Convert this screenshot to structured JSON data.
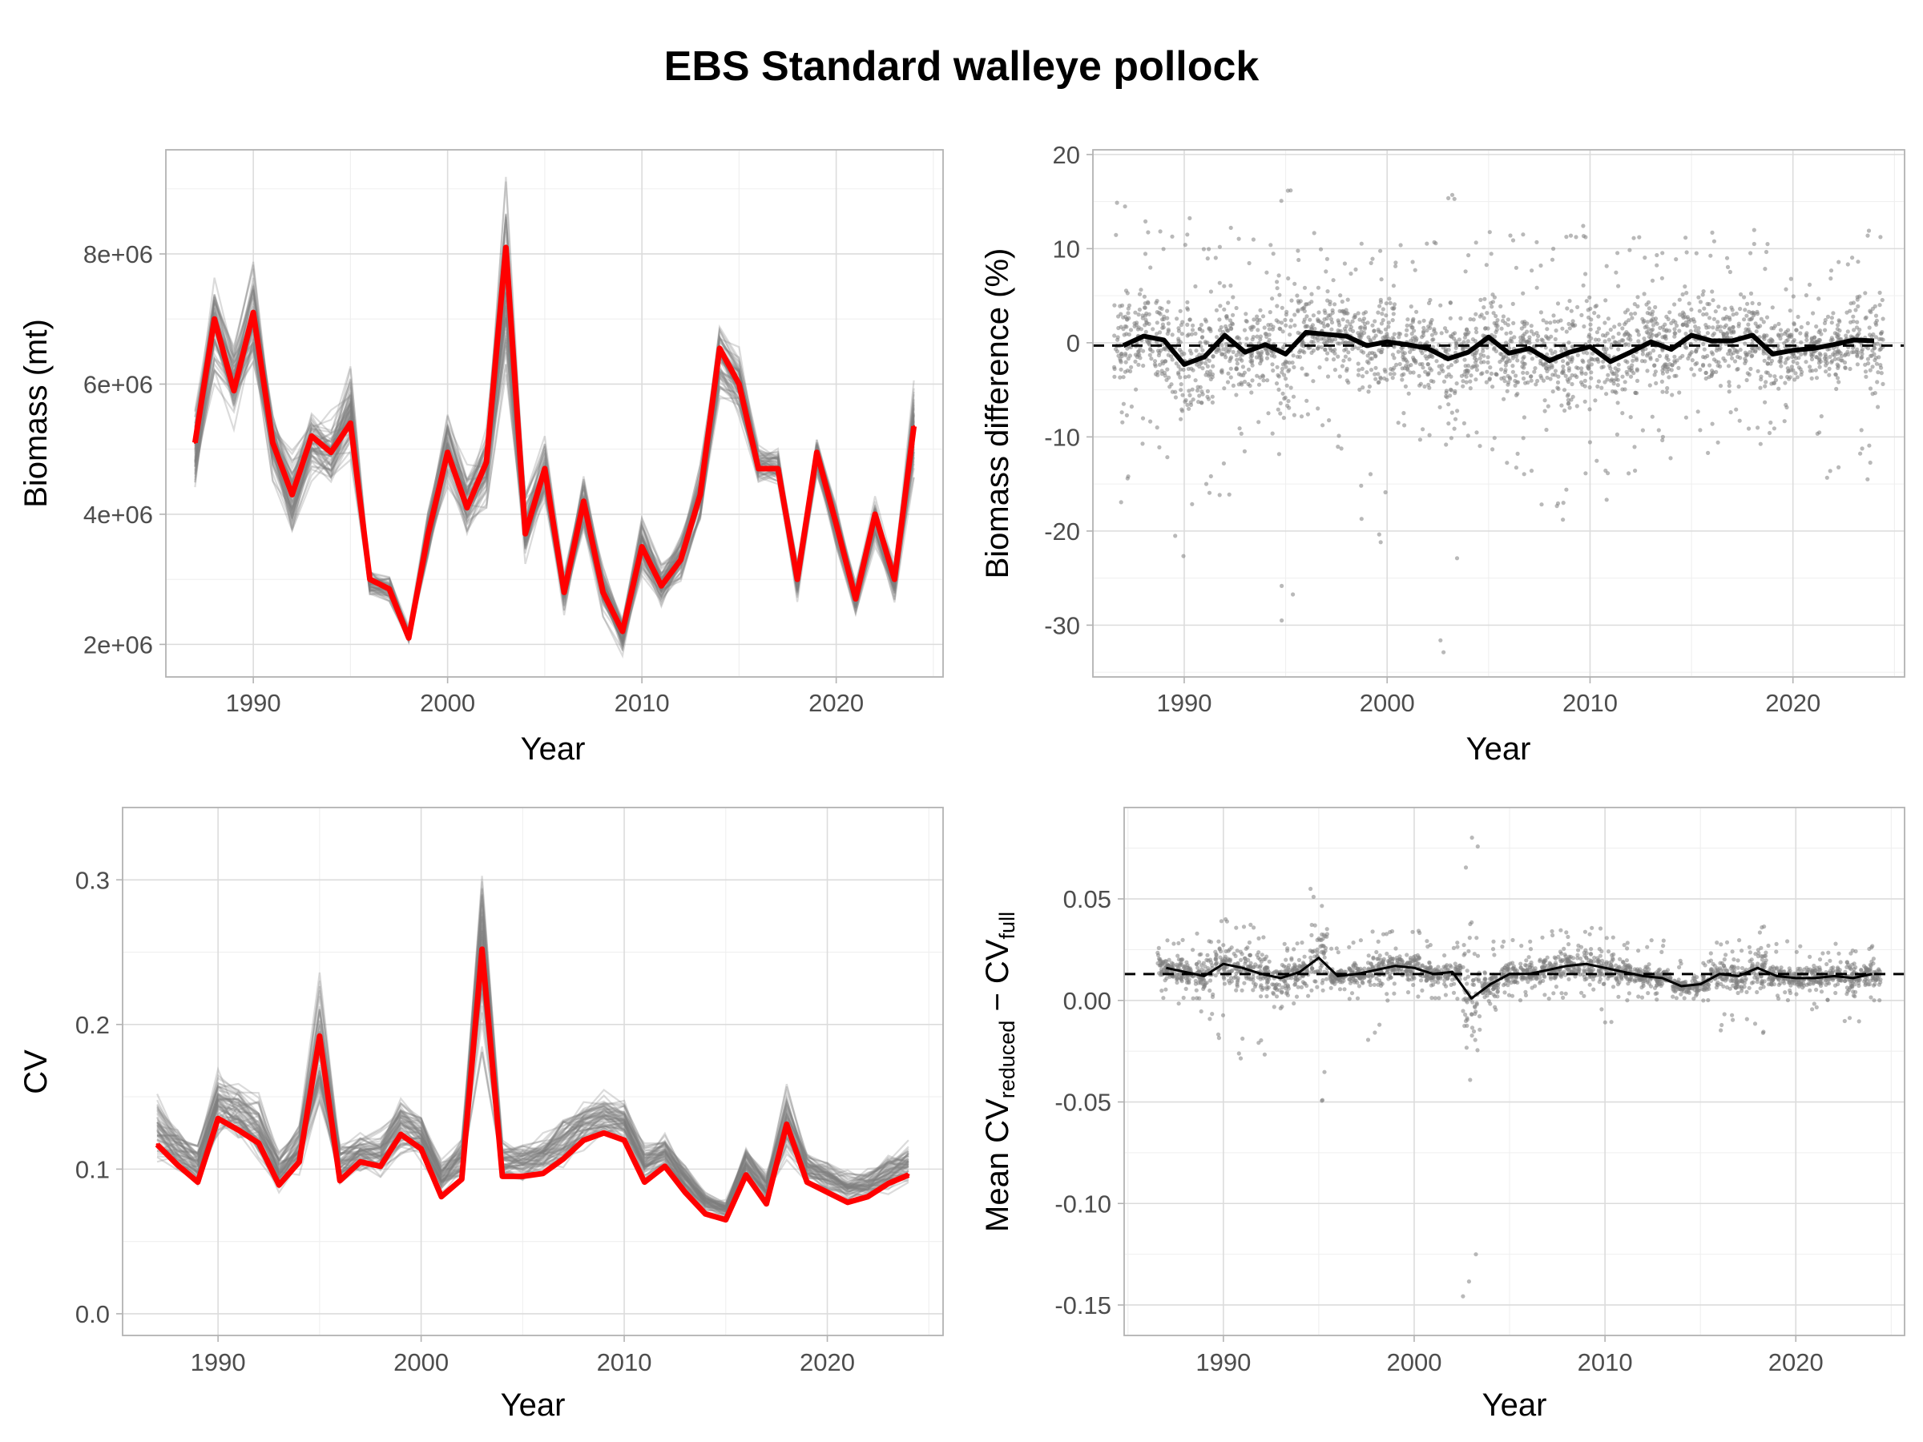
{
  "figure": {
    "title": "EBS Standard walleye pollock",
    "colors": {
      "observed": "#ff0000",
      "replicate": "#7f7f7f",
      "point": "#808080",
      "mean_line": "#000000",
      "reference_line": "#000000",
      "grid": "#dcdcdc",
      "border": "#b3b3b3"
    }
  },
  "chart_data": [
    {
      "type": "line",
      "panel": "top-left",
      "xlabel": "Year",
      "ylabel": "Biomass (mt)",
      "xlim": [
        1985.5,
        2025.5
      ],
      "ylim": [
        1500000,
        9600000
      ],
      "x_ticks": [
        1990,
        2000,
        2010,
        2020
      ],
      "x_tick_labels": [
        "1990",
        "2000",
        "2010",
        "2020"
      ],
      "y_ticks": [
        2000000,
        4000000,
        6000000,
        8000000
      ],
      "y_tick_labels": [
        "2e+06",
        "4e+06",
        "6e+06",
        "8e+06"
      ],
      "grid": true,
      "x": [
        1987,
        1988,
        1989,
        1990,
        1991,
        1992,
        1993,
        1994,
        1995,
        1996,
        1997,
        1998,
        1999,
        2000,
        2001,
        2002,
        2003,
        2004,
        2005,
        2006,
        2007,
        2008,
        2009,
        2010,
        2011,
        2012,
        2013,
        2014,
        2015,
        2016,
        2017,
        2018,
        2019,
        2020,
        2021,
        2022,
        2023,
        2024
      ],
      "series": [
        {
          "role": "observed",
          "values": [
            5100000,
            7000000,
            5900000,
            7100000,
            5100000,
            4300000,
            5200000,
            4950000,
            5400000,
            3000000,
            2850000,
            2100000,
            3700000,
            4950000,
            4100000,
            4800000,
            8100000,
            3700000,
            4700000,
            2800000,
            4200000,
            2800000,
            2200000,
            3500000,
            2900000,
            3300000,
            4300000,
            6550000,
            6000000,
            4700000,
            4700000,
            3000000,
            4950000,
            3850000,
            2700000,
            4000000,
            3000000,
            5350000
          ]
        }
      ],
      "replicate_band": {
        "role": "replicates",
        "lower": [
          4200000,
          6000000,
          5300000,
          5900000,
          4500000,
          3500000,
          4500000,
          4300000,
          4800000,
          2700000,
          2600000,
          2000000,
          3200000,
          4400000,
          3600000,
          4100000,
          5900000,
          3100000,
          4100000,
          2400000,
          3600000,
          2400000,
          1800000,
          3000000,
          2500000,
          2900000,
          3800000,
          5700000,
          5500000,
          4400000,
          4400000,
          2600000,
          4500000,
          3400000,
          2400000,
          3500000,
          2600000,
          4400000
        ],
        "upper": [
          5800000,
          7900000,
          6700000,
          8000000,
          5700000,
          5100000,
          5700000,
          5600000,
          6400000,
          3200000,
          3100000,
          2300000,
          4200000,
          5600000,
          4800000,
          5400000,
          9400000,
          4500000,
          5200000,
          3200000,
          4700000,
          3300000,
          2500000,
          4000000,
          3300000,
          3800000,
          4800000,
          7100000,
          6600000,
          5100000,
          5100000,
          3300000,
          5300000,
          4300000,
          3000000,
          4300000,
          3300000,
          6200000
        ]
      }
    },
    {
      "type": "scatter",
      "panel": "top-right",
      "xlabel": "Year",
      "ylabel": "Biomass difference (%)",
      "xlim": [
        1985.5,
        2025.5
      ],
      "ylim": [
        -35.5,
        20.5
      ],
      "x_ticks": [
        1990,
        2000,
        2010,
        2020
      ],
      "x_tick_labels": [
        "1990",
        "2000",
        "2010",
        "2020"
      ],
      "y_ticks": [
        -30,
        -20,
        -10,
        0,
        10,
        20
      ],
      "y_tick_labels": [
        "-30",
        "-20",
        "-10",
        "0",
        "10",
        "20"
      ],
      "grid": true,
      "reference_line": {
        "y": -0.3,
        "style": "dashed"
      },
      "x": [
        1987,
        1988,
        1989,
        1990,
        1991,
        1992,
        1993,
        1994,
        1995,
        1996,
        1997,
        1998,
        1999,
        2000,
        2001,
        2002,
        2003,
        2004,
        2005,
        2006,
        2007,
        2008,
        2009,
        2010,
        2011,
        2012,
        2013,
        2014,
        2015,
        2016,
        2017,
        2018,
        2019,
        2020,
        2021,
        2022,
        2023,
        2024
      ],
      "mean_difference": [
        -0.3,
        0.7,
        0.3,
        -2.3,
        -1.5,
        0.8,
        -1.0,
        -0.2,
        -1.2,
        1.1,
        0.9,
        0.7,
        -0.3,
        0.1,
        -0.2,
        -0.6,
        -1.7,
        -1.0,
        0.6,
        -1.1,
        -0.6,
        -1.9,
        -1.0,
        -0.4,
        -2.0,
        -1.0,
        0.1,
        -0.7,
        0.8,
        0.2,
        0.2,
        0.8,
        -1.2,
        -0.8,
        -0.6,
        -0.2,
        0.3,
        0.2
      ],
      "point_spread": {
        "lower": [
          -19,
          -12,
          -13,
          -23,
          -20,
          -20,
          -12,
          -10,
          -33,
          -10,
          -10,
          -14,
          -20,
          -23,
          -10,
          -12,
          -33,
          -10,
          -14,
          -14,
          -15,
          -18,
          -19,
          -16,
          -17,
          -14,
          -12,
          -13,
          -11,
          -12,
          -10,
          -11,
          -11,
          -9,
          -11,
          -15,
          -12,
          -15
        ],
        "upper": [
          15,
          14,
          12,
          14,
          11,
          13,
          12,
          11,
          18,
          12,
          11,
          10,
          11,
          12,
          11,
          11,
          16,
          11,
          12,
          12,
          12,
          12,
          12,
          15,
          12,
          12,
          11,
          10,
          12,
          12,
          11,
          13,
          12,
          8,
          7,
          9,
          10,
          14
        ]
      }
    },
    {
      "type": "line",
      "panel": "bottom-left",
      "xlabel": "Year",
      "ylabel": "CV",
      "xlim": [
        1985.3,
        2025.7
      ],
      "ylim": [
        -0.015,
        0.35
      ],
      "x_ticks": [
        1990,
        2000,
        2010,
        2020
      ],
      "x_tick_labels": [
        "1990",
        "2000",
        "2010",
        "2020"
      ],
      "y_ticks": [
        0.0,
        0.1,
        0.2,
        0.3
      ],
      "y_tick_labels": [
        "0.0",
        "0.1",
        "0.2",
        "0.3"
      ],
      "grid": true,
      "x": [
        1987,
        1988,
        1989,
        1990,
        1991,
        1992,
        1993,
        1994,
        1995,
        1996,
        1997,
        1998,
        1999,
        2000,
        2001,
        2002,
        2003,
        2004,
        2005,
        2006,
        2007,
        2008,
        2009,
        2010,
        2011,
        2012,
        2013,
        2014,
        2015,
        2016,
        2017,
        2018,
        2019,
        2020,
        2021,
        2022,
        2023,
        2024
      ],
      "series": [
        {
          "role": "observed",
          "values": [
            0.117,
            0.103,
            0.091,
            0.135,
            0.127,
            0.118,
            0.089,
            0.105,
            0.192,
            0.092,
            0.105,
            0.102,
            0.124,
            0.114,
            0.081,
            0.093,
            0.252,
            0.095,
            0.095,
            0.097,
            0.107,
            0.12,
            0.125,
            0.12,
            0.091,
            0.102,
            0.084,
            0.069,
            0.065,
            0.096,
            0.076,
            0.131,
            0.091,
            0.084,
            0.077,
            0.081,
            0.09,
            0.096
          ]
        }
      ],
      "replicate_band": {
        "role": "replicates",
        "lower": [
          0.105,
          0.096,
          0.085,
          0.118,
          0.116,
          0.102,
          0.082,
          0.096,
          0.12,
          0.088,
          0.096,
          0.093,
          0.108,
          0.104,
          0.079,
          0.09,
          0.17,
          0.09,
          0.092,
          0.094,
          0.1,
          0.112,
          0.118,
          0.114,
          0.09,
          0.098,
          0.082,
          0.07,
          0.066,
          0.09,
          0.075,
          0.1,
          0.088,
          0.082,
          0.076,
          0.078,
          0.082,
          0.088
        ],
        "upper": [
          0.152,
          0.133,
          0.122,
          0.176,
          0.165,
          0.155,
          0.115,
          0.132,
          0.248,
          0.122,
          0.128,
          0.128,
          0.152,
          0.142,
          0.11,
          0.125,
          0.336,
          0.122,
          0.12,
          0.125,
          0.14,
          0.15,
          0.155,
          0.15,
          0.12,
          0.126,
          0.106,
          0.086,
          0.08,
          0.118,
          0.1,
          0.165,
          0.115,
          0.108,
          0.1,
          0.102,
          0.114,
          0.12
        ]
      }
    },
    {
      "type": "scatter",
      "panel": "bottom-right",
      "xlabel": "Year",
      "ylabel": {
        "prefix": "Mean CV",
        "sub1": "reduced",
        "middle": " − CV",
        "sub2": "full"
      },
      "xlim": [
        1984.8,
        2025.7
      ],
      "ylim": [
        -0.165,
        0.095
      ],
      "x_ticks": [
        1990,
        2000,
        2010,
        2020
      ],
      "x_tick_labels": [
        "1990",
        "2000",
        "2010",
        "2020"
      ],
      "y_ticks": [
        -0.15,
        -0.1,
        -0.05,
        0.0,
        0.05
      ],
      "y_tick_labels": [
        "-0.15",
        "-0.10",
        "-0.05",
        "0.00",
        "0.05"
      ],
      "grid": true,
      "reference_line": {
        "y": 0.013,
        "style": "dashed"
      },
      "x": [
        1987,
        1988,
        1989,
        1990,
        1991,
        1992,
        1993,
        1994,
        1995,
        1996,
        1997,
        1998,
        1999,
        2000,
        2001,
        2002,
        2003,
        2004,
        2005,
        2006,
        2007,
        2008,
        2009,
        2010,
        2011,
        2012,
        2013,
        2014,
        2015,
        2016,
        2017,
        2018,
        2019,
        2020,
        2021,
        2022,
        2023,
        2024
      ],
      "mean_difference": [
        0.016,
        0.014,
        0.012,
        0.018,
        0.016,
        0.013,
        0.011,
        0.014,
        0.021,
        0.012,
        0.013,
        0.015,
        0.017,
        0.016,
        0.013,
        0.014,
        0.001,
        0.008,
        0.013,
        0.013,
        0.015,
        0.017,
        0.018,
        0.016,
        0.014,
        0.012,
        0.011,
        0.007,
        0.008,
        0.013,
        0.012,
        0.016,
        0.012,
        0.011,
        0.011,
        0.012,
        0.011,
        0.013
      ],
      "point_spread": {
        "lower": [
          0.0,
          -0.005,
          -0.012,
          -0.02,
          -0.03,
          -0.033,
          -0.01,
          -0.002,
          -0.062,
          0.005,
          0.0,
          -0.02,
          -0.002,
          0.0,
          0.0,
          0.0,
          -0.152,
          -0.005,
          0.0,
          0.0,
          0.0,
          0.0,
          0.0,
          -0.015,
          0.0,
          0.0,
          0.0,
          0.0,
          -0.002,
          -0.015,
          -0.012,
          -0.018,
          0.0,
          0.0,
          -0.005,
          0.0,
          -0.018,
          0.0
        ],
        "upper": [
          0.03,
          0.03,
          0.035,
          0.042,
          0.04,
          0.036,
          0.03,
          0.03,
          0.057,
          0.03,
          0.03,
          0.035,
          0.035,
          0.038,
          0.03,
          0.03,
          0.085,
          0.03,
          0.03,
          0.03,
          0.035,
          0.036,
          0.04,
          0.038,
          0.03,
          0.03,
          0.03,
          0.02,
          0.022,
          0.03,
          0.03,
          0.04,
          0.03,
          0.03,
          0.025,
          0.028,
          0.028,
          0.028
        ]
      }
    }
  ]
}
